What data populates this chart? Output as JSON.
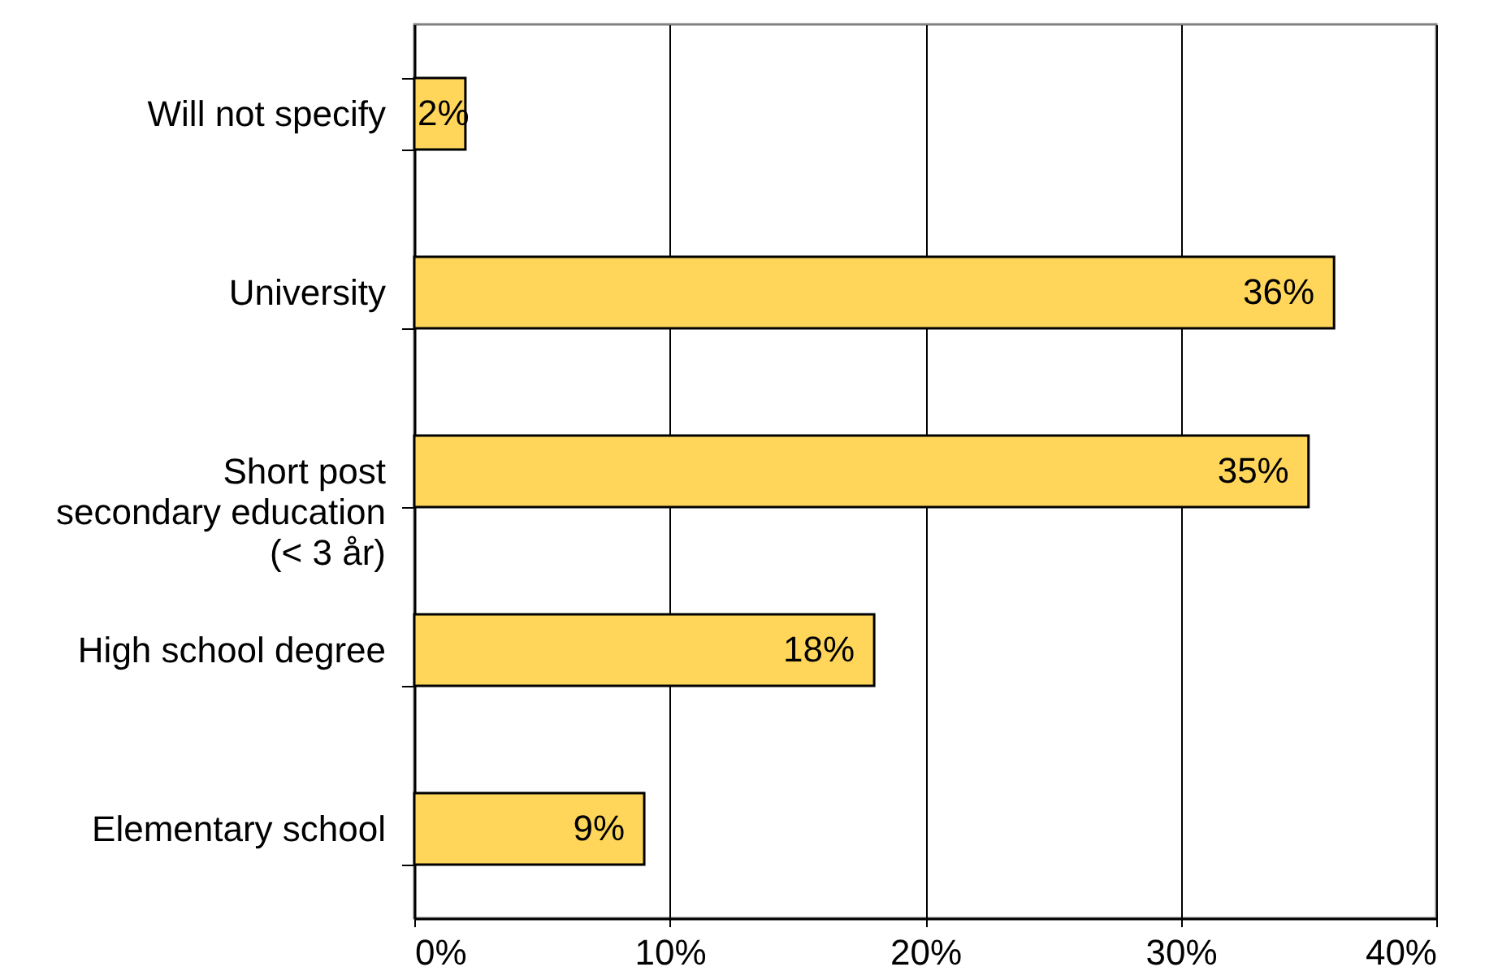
{
  "chart_data": {
    "type": "bar",
    "orientation": "horizontal",
    "categories": [
      "Will not specify",
      "University",
      "Short post secondary education (< 3 år)",
      "High school degree",
      "Elementary school"
    ],
    "values": [
      2,
      36,
      35,
      18,
      9
    ],
    "color": "#ffd65a",
    "value_labels": [
      "2%",
      "36%",
      "35%",
      "18%",
      "9%"
    ],
    "xlim": [
      0,
      40
    ],
    "xticks": [
      {
        "value": 0,
        "label": "0%"
      },
      {
        "value": 10,
        "label": "10%"
      },
      {
        "value": 20,
        "label": "20%"
      },
      {
        "value": 30,
        "label": "30%"
      },
      {
        "value": 40,
        "label": "40%"
      }
    ],
    "grid": "x"
  }
}
